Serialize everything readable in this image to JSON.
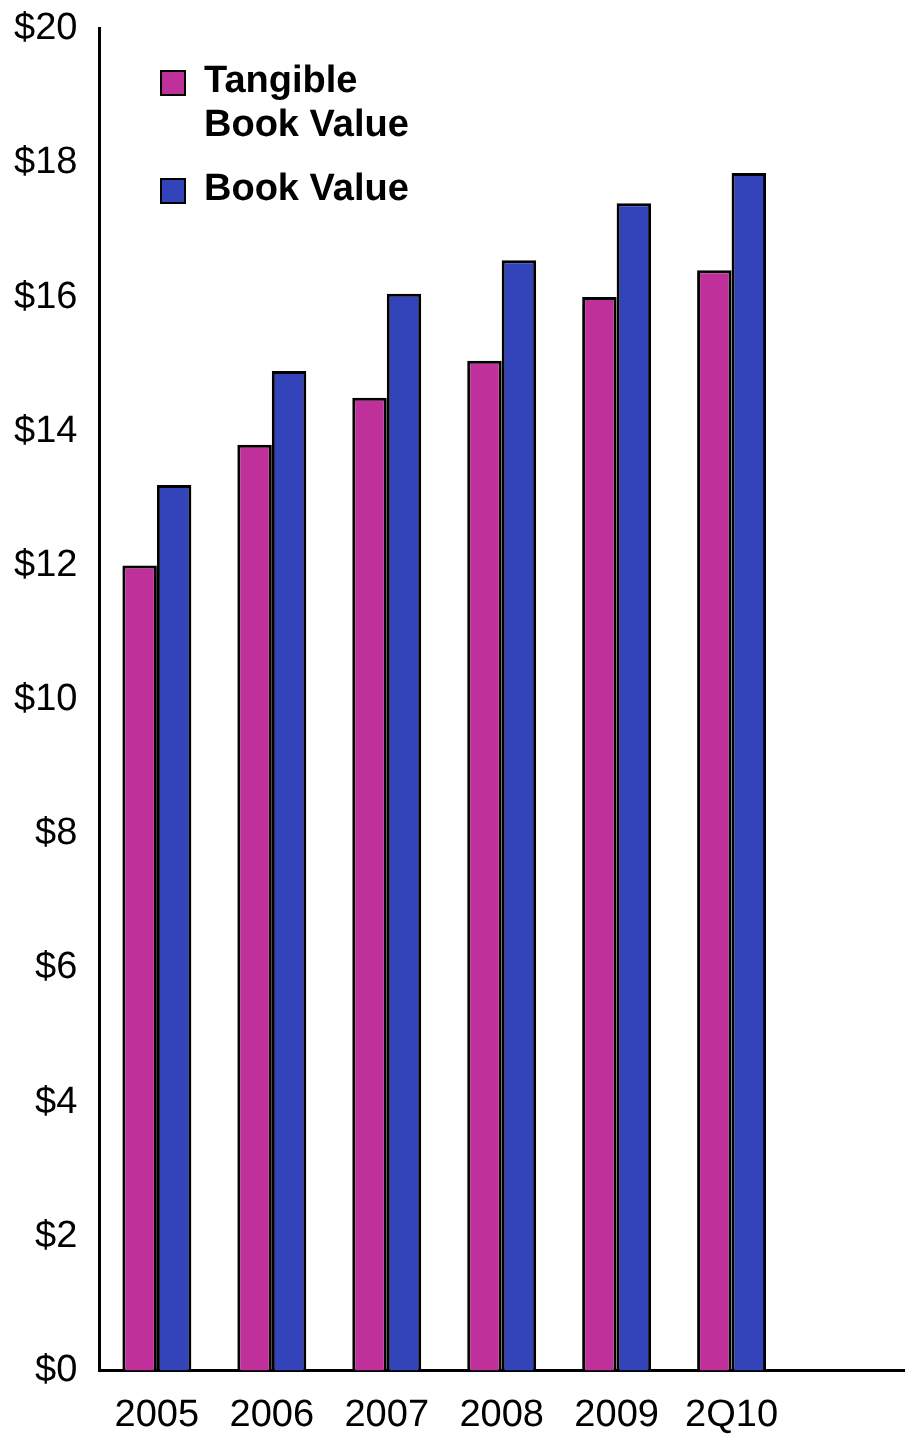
{
  "chart_data": {
    "type": "bar",
    "categories": [
      "2005",
      "2006",
      "2007",
      "2008",
      "2009",
      "2Q10",
      null
    ],
    "series": [
      {
        "name": "Tangible Book Value",
        "color": "#c0309a",
        "values": [
          12.0,
          13.8,
          14.5,
          15.05,
          16.0,
          16.4,
          null
        ]
      },
      {
        "name": "Book Value",
        "color": "#3344bb",
        "values": [
          13.2,
          14.9,
          16.05,
          16.55,
          17.4,
          17.85,
          null
        ]
      }
    ],
    "ylim": [
      0,
      20
    ],
    "yticks": [
      {
        "value": 0,
        "label": "$0"
      },
      {
        "value": 2,
        "label": "$2"
      },
      {
        "value": 4,
        "label": "$4"
      },
      {
        "value": 6,
        "label": "$6"
      },
      {
        "value": 8,
        "label": "$8"
      },
      {
        "value": 10,
        "label": "$10"
      },
      {
        "value": 12,
        "label": "$12"
      },
      {
        "value": 14,
        "label": "$14"
      },
      {
        "value": 16,
        "label": "$16"
      },
      {
        "value": 18,
        "label": "$18"
      },
      {
        "value": 20,
        "label": "$20"
      }
    ],
    "grid": false,
    "legend": "top left"
  }
}
